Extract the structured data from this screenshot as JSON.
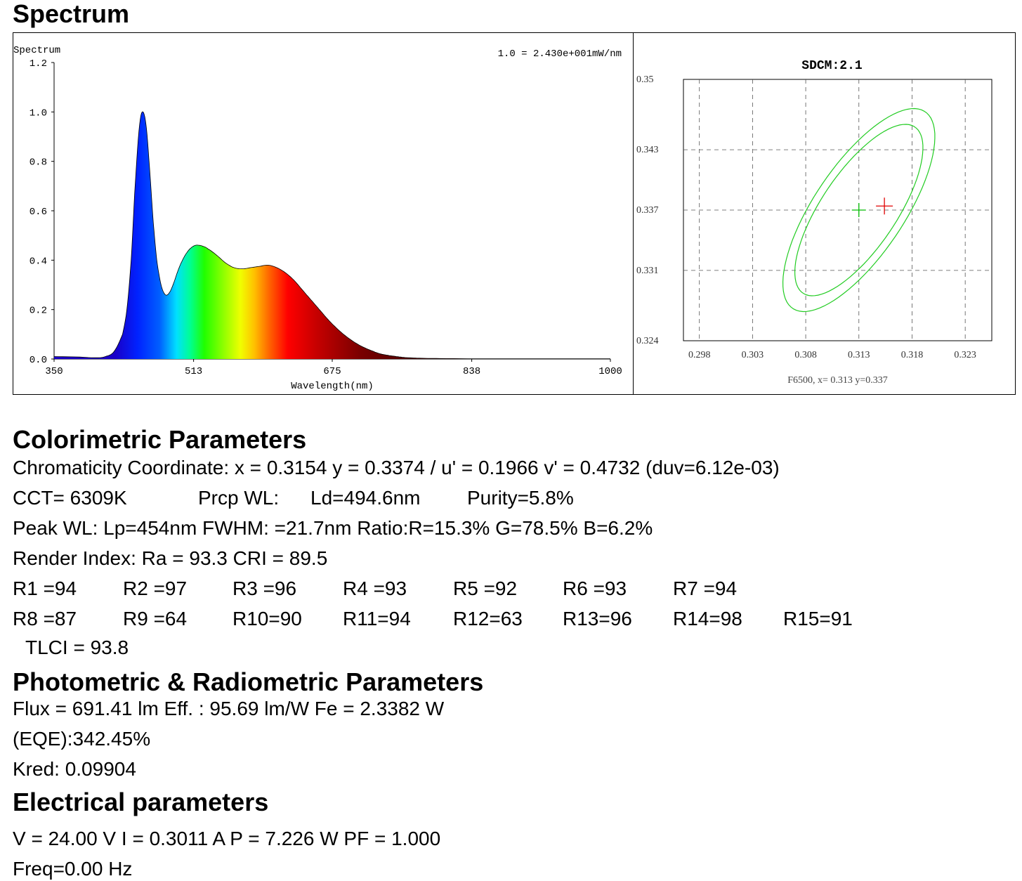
{
  "sections": {
    "spectrum_title": "Spectrum",
    "colorimetric_title": "Colorimetric Parameters",
    "photometric_title": " Photometric & Radiometric Parameters",
    "electrical_title": "Electrical parameters"
  },
  "chart_data": [
    {
      "type": "area",
      "title": "Spectrum",
      "xlabel": "Wavelength(nm)",
      "ylabel": "",
      "scale_note": "1.0 = 2.430e+001mW/nm",
      "xlim": [
        350,
        1000
      ],
      "ylim": [
        0,
        1.2
      ],
      "x_ticks": [
        "350",
        "513",
        "675",
        "838",
        "1000"
      ],
      "y_ticks": [
        "0.0",
        "0.2",
        "0.4",
        "0.6",
        "0.8",
        "1.0",
        "1.2"
      ],
      "fill": "wavelength-colored gradient",
      "x": [
        350,
        380,
        400,
        410,
        420,
        430,
        435,
        440,
        445,
        450,
        454,
        458,
        462,
        466,
        470,
        475,
        480,
        485,
        490,
        495,
        500,
        505,
        510,
        515,
        520,
        525,
        530,
        540,
        550,
        560,
        570,
        580,
        590,
        600,
        610,
        620,
        630,
        640,
        650,
        660,
        670,
        680,
        690,
        700,
        710,
        720,
        730,
        740,
        750,
        760,
        780,
        800,
        850,
        900,
        1000
      ],
      "y": [
        0.01,
        0.008,
        0.005,
        0.01,
        0.03,
        0.1,
        0.2,
        0.4,
        0.72,
        0.95,
        1.0,
        0.93,
        0.75,
        0.55,
        0.4,
        0.3,
        0.26,
        0.27,
        0.31,
        0.36,
        0.4,
        0.43,
        0.45,
        0.46,
        0.46,
        0.455,
        0.445,
        0.42,
        0.39,
        0.37,
        0.365,
        0.37,
        0.375,
        0.38,
        0.37,
        0.35,
        0.32,
        0.28,
        0.24,
        0.2,
        0.16,
        0.125,
        0.095,
        0.07,
        0.05,
        0.035,
        0.022,
        0.015,
        0.01,
        0.006,
        0.003,
        0.002,
        0.001,
        0.001,
        0.001
      ]
    },
    {
      "type": "scatter",
      "title": "SDCM:2.1",
      "caption": "F6500, x= 0.313 y=0.337",
      "xlim": [
        0.2965,
        0.3255
      ],
      "ylim": [
        0.324,
        0.35
      ],
      "x_ticks": [
        "0.298",
        "0.303",
        "0.308",
        "0.313",
        "0.318",
        "0.323"
      ],
      "y_ticks": [
        "0.35",
        "0.343",
        "0.337",
        "0.331",
        "0.324"
      ],
      "grid": true,
      "reference_point": {
        "x": 0.313,
        "y": 0.337,
        "color": "#00bb00"
      },
      "measured_point": {
        "x": 0.3154,
        "y": 0.3374,
        "color": "#e00000"
      },
      "ellipses": [
        {
          "label": "inner",
          "center": [
            0.313,
            0.337
          ],
          "semi_major": 0.0098,
          "semi_minor": 0.0036,
          "angle_deg": 58,
          "color": "#22cc22"
        },
        {
          "label": "outer",
          "center": [
            0.313,
            0.337
          ],
          "semi_major": 0.0116,
          "semi_minor": 0.0043,
          "angle_deg": 58,
          "color": "#22cc22"
        }
      ]
    }
  ],
  "colorimetric": {
    "chromaticity": "Chromaticity Coordinate: x = 0.3154 y = 0.3374 / u' = 0.1966 v' = 0.4732 (duv=6.12e-03)",
    "cct": "CCT=  6309K",
    "prcp": "Prcp WL:",
    "ld": "Ld=494.6nm",
    "purity": "Purity=5.8%",
    "peak": "Peak WL:  Lp=454nm  FWHM:   =21.7nm  Ratio:R=15.3% G=78.5% B=6.2%",
    "render": "Render Index: Ra = 93.3 CRI = 89.5",
    "r_row1": [
      "R1 =94",
      "R2 =97",
      "R3 =96",
      "R4 =93",
      "R5 =92",
      "R6 =93",
      "R7 =94"
    ],
    "r_row2": [
      "R8 =87",
      "R9 =64",
      "R10=90",
      "R11=94",
      "R12=63",
      "R13=96",
      "R14=98",
      "R15=91"
    ],
    "tlci": "TLCI = 93.8"
  },
  "photometric": {
    "flux": "Flux  = 691.41 lm   Eff. : 95.69 lm/W  Fe  = 2.3382 W",
    "eqe": " (EQE):342.45%",
    "kred": "Kred: 0.09904"
  },
  "electrical": {
    "vip": "V = 24.00 V     I = 0.3011 A    P = 7.226 W PF = 1.000",
    "freq": " Freq=0.00 Hz"
  }
}
